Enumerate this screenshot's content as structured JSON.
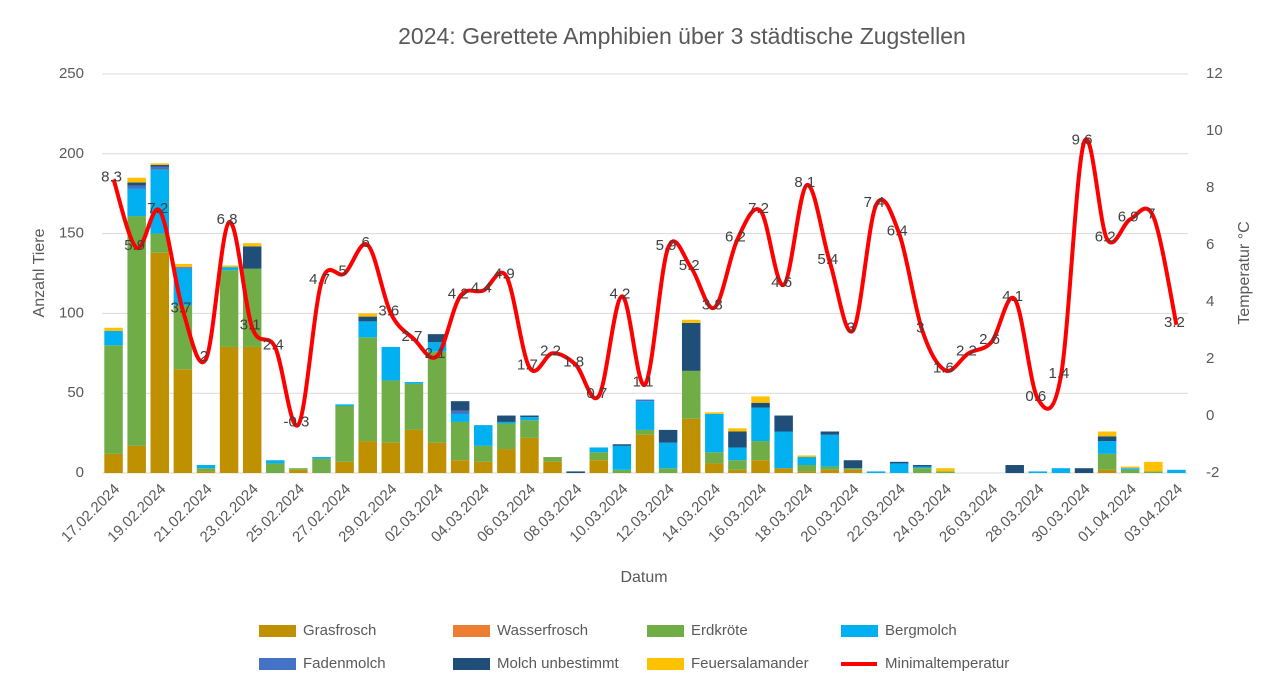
{
  "chart_data": {
    "type": "bar",
    "title": "2024: Gerettete Amphibien über 3 städtische Zugstellen",
    "x_label": "Datum",
    "y_label": "Anzahl Tiere",
    "y2_label": "Temperatur °C",
    "categories": [
      "17.02.2024",
      null,
      "19.02.2024",
      null,
      "21.02.2024",
      null,
      "23.02.2024",
      null,
      "25.02.2024",
      null,
      "27.02.2024",
      null,
      "29.02.2024",
      null,
      "02.03.2024",
      null,
      "04.03.2024",
      null,
      "06.03.2024",
      null,
      "08.03.2024",
      null,
      "10.03.2024",
      null,
      "12.03.2024",
      null,
      "14.03.2024",
      null,
      "16.03.2024",
      null,
      "18.03.2024",
      null,
      "20.03.2024",
      null,
      "22.03.2024",
      null,
      "24.03.2024",
      null,
      "26.03.2024",
      null,
      "28.03.2024",
      null,
      "30.03.2024",
      null,
      "01.04.2024",
      null,
      "03.04.2024"
    ],
    "series": [
      {
        "name": "Grasfrosch",
        "color": "#bf9000",
        "values": [
          12,
          17,
          138,
          65,
          1,
          79,
          79,
          0,
          2,
          0,
          7,
          20,
          19,
          27,
          19,
          8,
          7,
          15,
          22,
          7,
          0,
          8,
          0,
          24,
          0,
          34,
          6,
          2,
          8,
          3,
          1,
          2,
          2,
          0,
          0,
          0,
          0,
          0,
          0,
          0,
          0,
          0,
          0,
          2,
          0,
          0,
          0
        ]
      },
      {
        "name": "Wasserfrosch",
        "color": "#ed7d31",
        "values": [
          0,
          0,
          0,
          0,
          0,
          0,
          0,
          0,
          0,
          0,
          0,
          0,
          0,
          0,
          0,
          0,
          0,
          0,
          0,
          0,
          0,
          0,
          0,
          0,
          0,
          0,
          0,
          0,
          0,
          0,
          0,
          0,
          0,
          0,
          0,
          0,
          0,
          0,
          0,
          0,
          0,
          0,
          0,
          0,
          0,
          0,
          0
        ]
      },
      {
        "name": "Erdkröte",
        "color": "#70ad47",
        "values": [
          68,
          144,
          12,
          40,
          2,
          48,
          49,
          6,
          1,
          9,
          35,
          65,
          39,
          29,
          57,
          24,
          10,
          16,
          11,
          3,
          0,
          5,
          2,
          3,
          3,
          30,
          7,
          6,
          12,
          0,
          4,
          2,
          1,
          0,
          0,
          3,
          1,
          0,
          0,
          0,
          0,
          0,
          0,
          10,
          2,
          1,
          0
        ]
      },
      {
        "name": "Bergmolch",
        "color": "#00b0f0",
        "values": [
          9,
          17,
          40,
          23,
          2,
          2,
          0,
          2,
          0,
          1,
          1,
          10,
          21,
          1,
          6,
          5,
          13,
          1,
          2,
          0,
          0,
          3,
          15,
          18,
          16,
          0,
          24,
          8,
          21,
          23,
          5,
          20,
          0,
          1,
          6,
          1,
          0,
          0,
          0,
          0,
          1,
          3,
          0,
          8,
          1,
          0,
          2
        ]
      },
      {
        "name": "Fadenmolch",
        "color": "#4472c4",
        "values": [
          0,
          2,
          2,
          1,
          0,
          0,
          0,
          0,
          0,
          0,
          0,
          0,
          0,
          0,
          0,
          2,
          0,
          0,
          0,
          0,
          0,
          0,
          0,
          1,
          0,
          0,
          0,
          0,
          0,
          0,
          0,
          0,
          0,
          0,
          0,
          0,
          0,
          0,
          0,
          0,
          0,
          0,
          0,
          0,
          0,
          0,
          0
        ]
      },
      {
        "name": "Molch unbestimmt",
        "color": "#1f4e79",
        "values": [
          0,
          2,
          1,
          0,
          0,
          0,
          14,
          0,
          0,
          0,
          0,
          3,
          0,
          0,
          5,
          6,
          0,
          4,
          1,
          0,
          1,
          0,
          1,
          0,
          8,
          30,
          0,
          10,
          3,
          10,
          0,
          2,
          5,
          0,
          1,
          1,
          0,
          0,
          0,
          5,
          0,
          0,
          3,
          3,
          0,
          0,
          0
        ]
      },
      {
        "name": "Feuersalamander",
        "color": "#ffc000",
        "values": [
          2,
          3,
          1,
          2,
          0,
          1,
          2,
          0,
          0,
          0,
          0,
          2,
          0,
          0,
          0,
          0,
          0,
          0,
          0,
          0,
          0,
          0,
          0,
          0,
          0,
          2,
          1,
          2,
          4,
          0,
          1,
          0,
          0,
          0,
          0,
          0,
          2,
          0,
          0,
          0,
          0,
          0,
          0,
          3,
          1,
          6,
          0
        ]
      },
      {
        "name": "Minimaltemperatur",
        "color": "#ff0000",
        "type": "line",
        "axis": "y2",
        "values": [
          8.3,
          5.9,
          7.2,
          3.7,
          2,
          6.8,
          3.1,
          2.4,
          -0.3,
          4.7,
          5,
          6,
          3.6,
          2.7,
          2.1,
          4.2,
          4.4,
          4.9,
          1.7,
          2.2,
          1.8,
          0.7,
          4.2,
          1.1,
          5.9,
          5.2,
          3.8,
          6.2,
          7.2,
          4.6,
          8.1,
          5.4,
          3,
          7.4,
          6.4,
          3,
          1.6,
          2.2,
          2.6,
          4.1,
          0.6,
          1.4,
          9.6,
          6.2,
          6.9,
          7,
          3.2
        ]
      }
    ],
    "ylim": [
      0,
      250
    ],
    "yticks": [
      0,
      50,
      100,
      150,
      200,
      250
    ],
    "y2lim": [
      -2,
      12
    ],
    "y2ticks": [
      -2,
      0,
      2,
      4,
      6,
      8,
      10,
      12
    ],
    "grid": true,
    "legend": "bottom"
  }
}
